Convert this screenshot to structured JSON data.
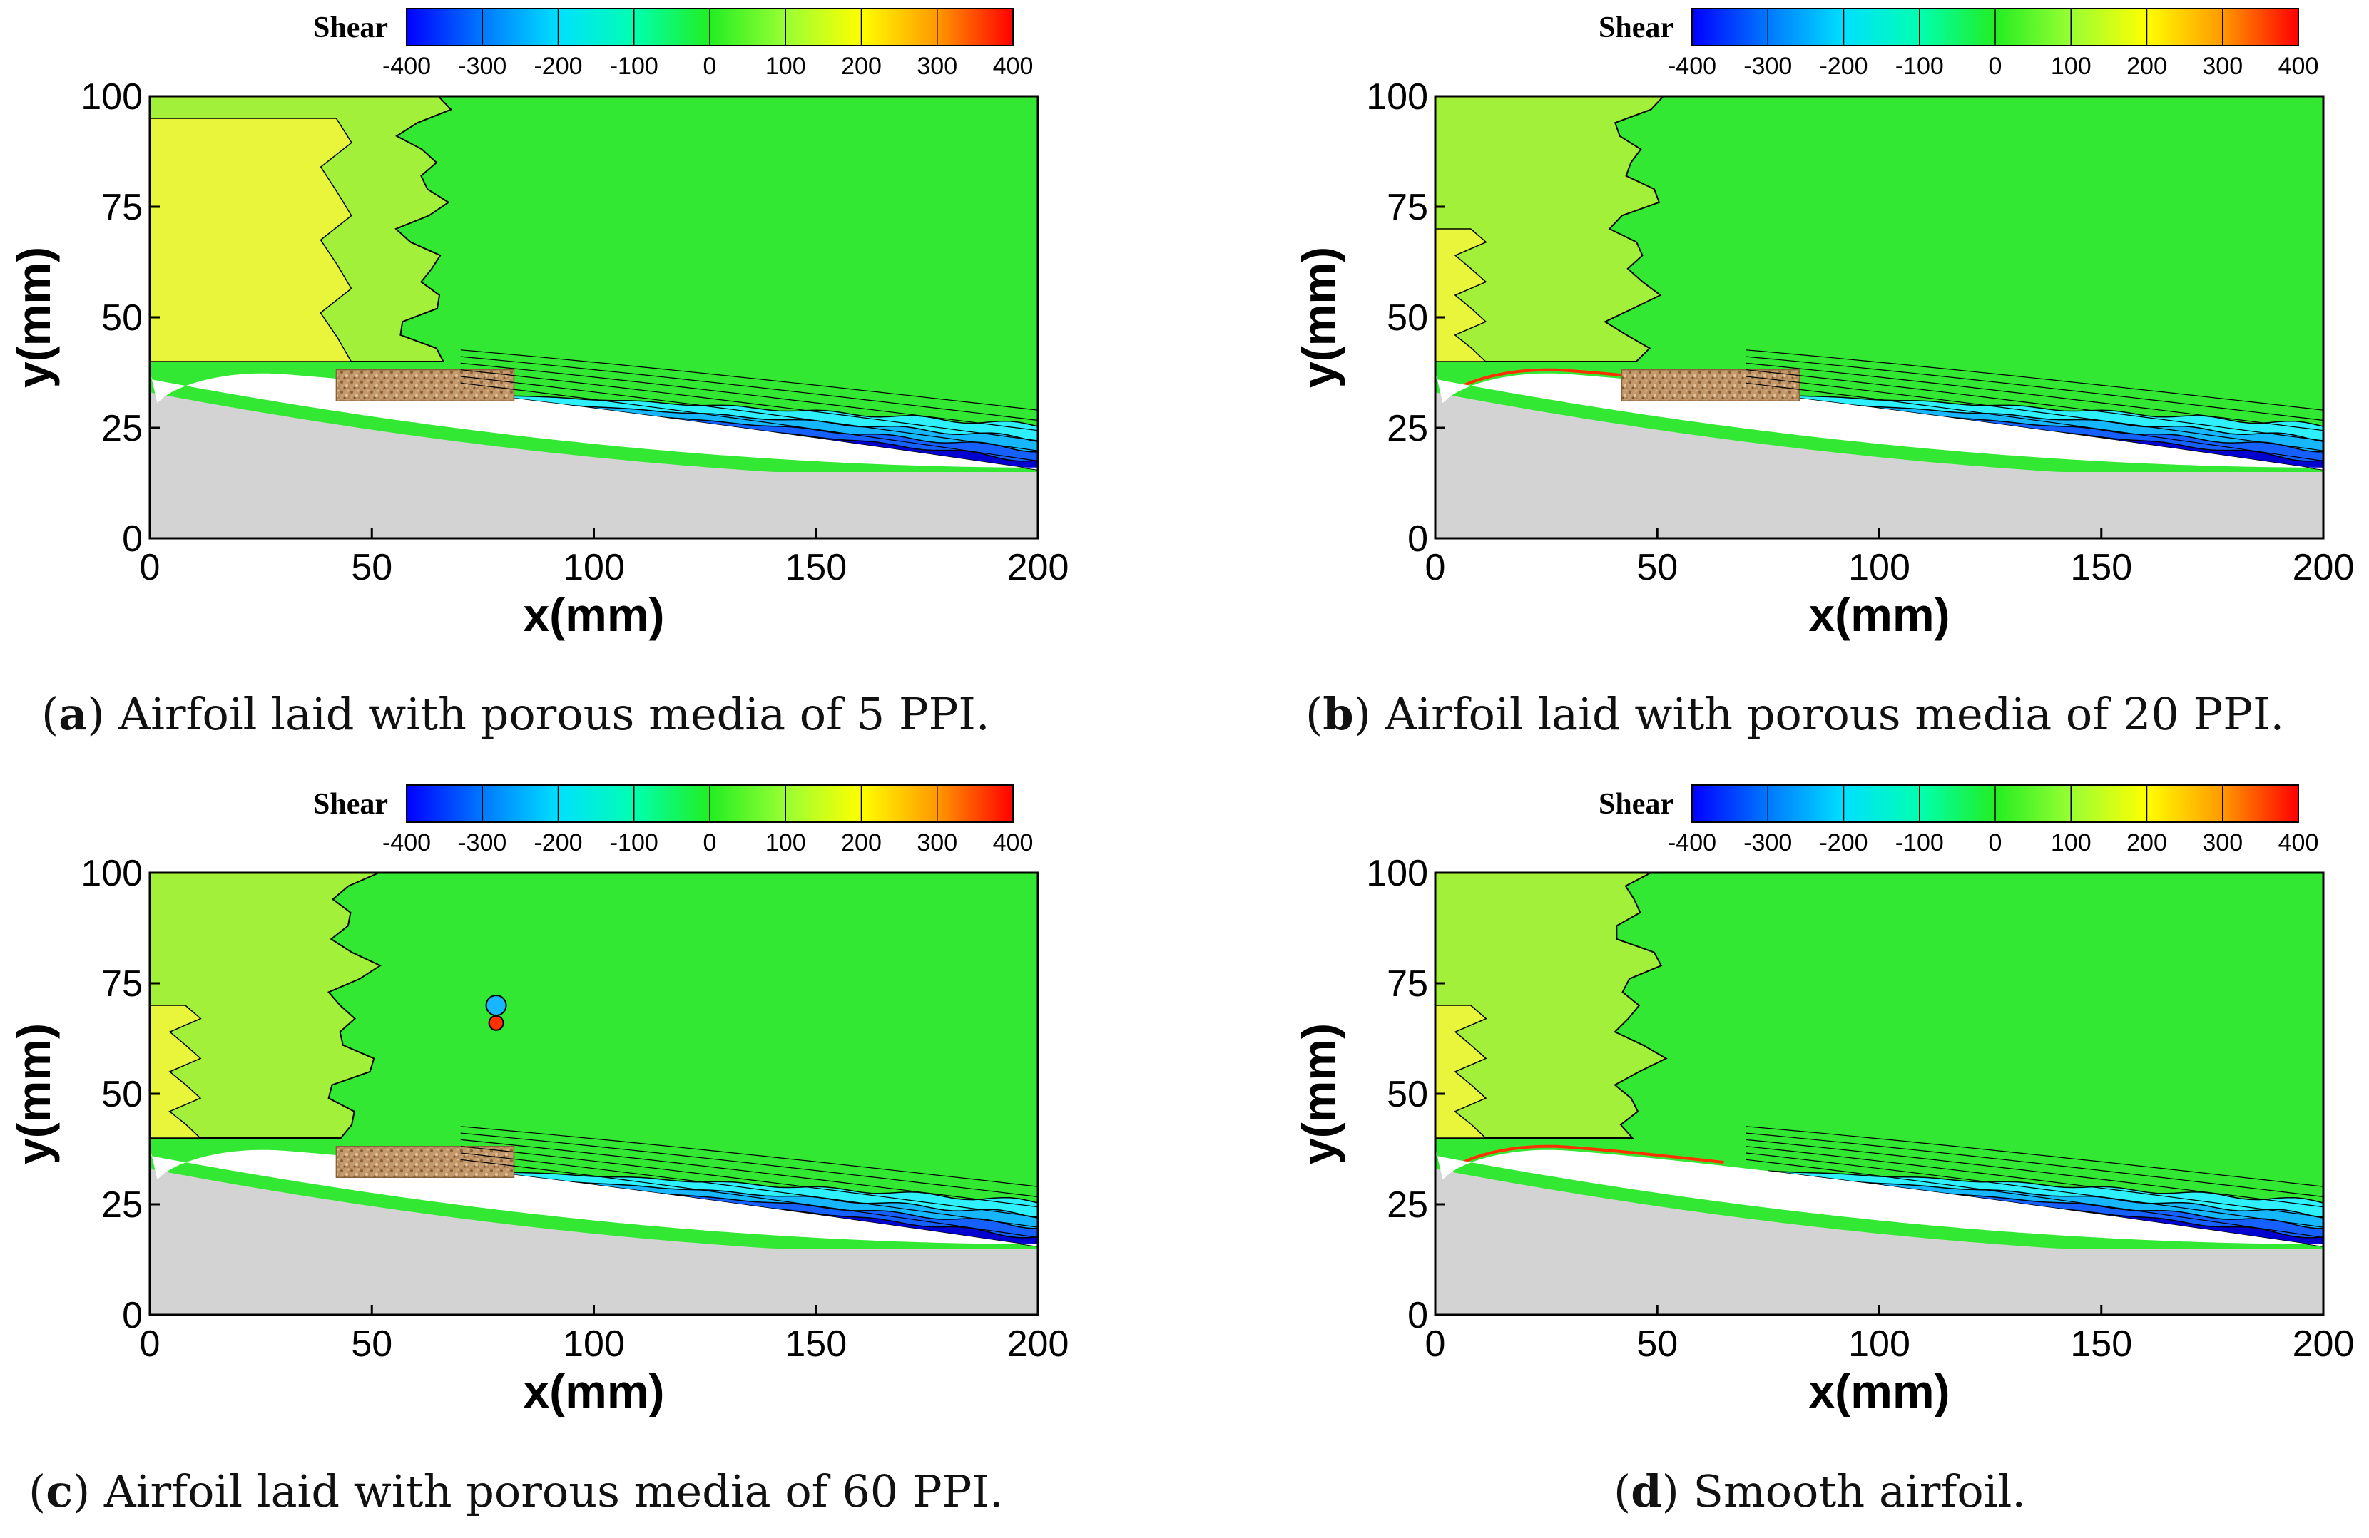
{
  "chart_data": [
    {
      "type": "heatmap",
      "letter": "a",
      "caption": "Airfoil laid with porous media of 5 PPI.",
      "colorbar": {
        "title": "Shear",
        "ticks": [
          -400,
          -300,
          -200,
          -100,
          0,
          100,
          200,
          300,
          400
        ],
        "range": [
          -400,
          400
        ]
      },
      "xlabel": "x(mm)",
      "ylabel": "y(mm)",
      "xlim": [
        0,
        200
      ],
      "ylim": [
        0,
        100
      ],
      "xticks": [
        0,
        50,
        100,
        150,
        200
      ],
      "yticks": [
        0,
        25,
        50,
        75,
        100
      ],
      "porous_insert": {
        "x_range_mm": [
          42,
          82
        ],
        "mean_y_mm": 37
      },
      "features": [
        "Positive shear (~150) region near leading edge x<65",
        "Negative shear band (-100 to -400) along aft suction surface"
      ]
    },
    {
      "type": "heatmap",
      "letter": "b",
      "caption": "Airfoil laid with porous media of 20 PPI.",
      "colorbar": {
        "title": "Shear",
        "ticks": [
          -400,
          -300,
          -200,
          -100,
          0,
          100,
          200,
          300,
          400
        ],
        "range": [
          -400,
          400
        ]
      },
      "xlabel": "x(mm)",
      "ylabel": "y(mm)",
      "xlim": [
        0,
        200
      ],
      "ylim": [
        0,
        100
      ],
      "xticks": [
        0,
        50,
        100,
        150,
        200
      ],
      "yticks": [
        0,
        25,
        50,
        75,
        100
      ],
      "porous_insert": {
        "x_range_mm": [
          42,
          82
        ],
        "mean_y_mm": 37
      },
      "features": [
        "Positive shear region x<45",
        "Negative shear band along aft surface",
        "Noisy contours x>150"
      ]
    },
    {
      "type": "heatmap",
      "letter": "c",
      "caption": "Airfoil laid with porous media of 60 PPI.",
      "colorbar": {
        "title": "Shear",
        "ticks": [
          -400,
          -300,
          -200,
          -100,
          0,
          100,
          200,
          300,
          400
        ],
        "range": [
          -400,
          400
        ]
      },
      "xlabel": "x(mm)",
      "ylabel": "y(mm)",
      "xlim": [
        0,
        200
      ],
      "ylim": [
        0,
        100
      ],
      "xticks": [
        0,
        50,
        100,
        150,
        200
      ],
      "yticks": [
        0,
        25,
        50,
        75,
        100
      ],
      "porous_insert": {
        "x_range_mm": [
          42,
          82
        ],
        "mean_y_mm": 37
      },
      "features": [
        "Small positive shear patches x<45",
        "Spot near (78, 68)",
        "Wide negative shear band x>80"
      ]
    },
    {
      "type": "heatmap",
      "letter": "d",
      "caption": "Smooth airfoil.",
      "colorbar": {
        "title": "Shear",
        "ticks": [
          -400,
          -300,
          -200,
          -100,
          0,
          100,
          200,
          300,
          400
        ],
        "range": [
          -400,
          400
        ]
      },
      "xlabel": "x(mm)",
      "ylabel": "y(mm)",
      "xlim": [
        0,
        200
      ],
      "ylim": [
        0,
        100
      ],
      "xticks": [
        0,
        50,
        100,
        150,
        200
      ],
      "yticks": [
        0,
        25,
        50,
        75,
        100
      ],
      "porous_insert": null,
      "features": [
        "Positive shear region x<45",
        "Thin strong positive shear near leading edge",
        "Negative shear band along aft surface"
      ]
    }
  ]
}
